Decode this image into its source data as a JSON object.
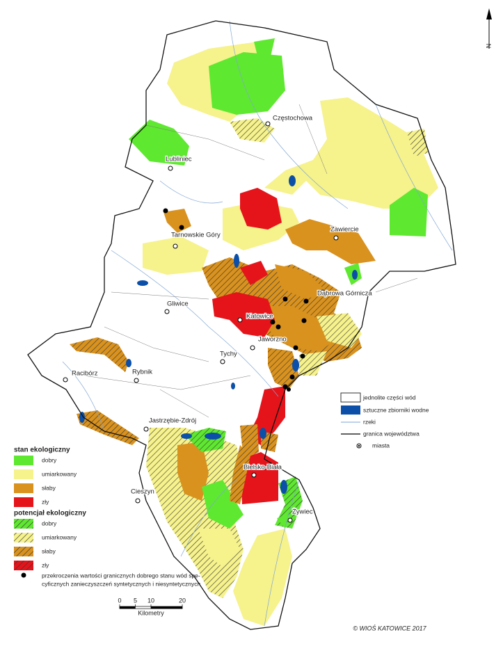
{
  "north": "N",
  "cities": [
    "Częstochowa",
    "Lubliniec",
    "Zawiercie",
    "Tarnowskie Góry",
    "Dąbrowa Górnicza",
    "Gliwice",
    "Katowice",
    "Jaworzno",
    "Tychy",
    "Racibórz",
    "Rybnik",
    "Jastrzębie-Zdrój",
    "Bielsko-Biała",
    "Cieszyn",
    "Żywiec"
  ],
  "legend_state": {
    "title": "stan ekologiczny",
    "items": [
      "dobry",
      "umiarkowany",
      "słaby",
      "zły"
    ]
  },
  "legend_potential": {
    "title": "potencjał ekologiczny",
    "items": [
      "dobry",
      "umiarkowany",
      "słaby",
      "zły"
    ]
  },
  "note": {
    "lines": [
      "przekroczenia wartości granicznych dobrego stanu wód spe-",
      "cyficznych zanieczyszczeń syntetycznych i niesyntetycznych"
    ]
  },
  "legend_map": {
    "items": [
      "jednolite części wód",
      "sztuczne zbiorniki wodne",
      "rzeki",
      "granica województwa",
      "miasta"
    ]
  },
  "scale": {
    "ticks": [
      0,
      5,
      10,
      20
    ],
    "unit": "Kilometry"
  },
  "copyright": "© WIOŚ KATOWICE 2017"
}
